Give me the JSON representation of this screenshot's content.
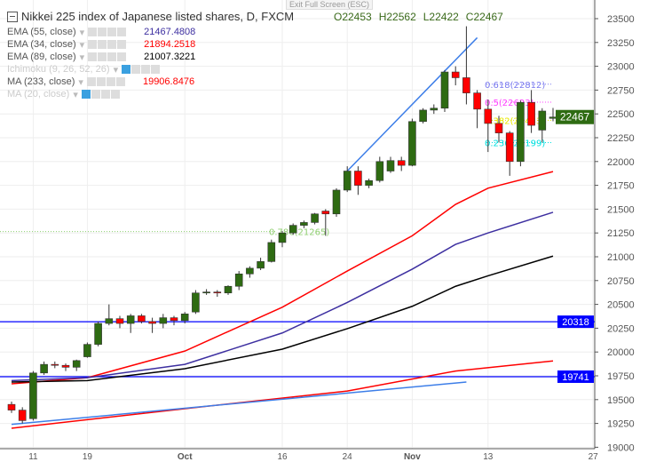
{
  "header": {
    "title": "Nikkei 225 index of Japanese listed shares, D, FXCM",
    "tooltip": "Exit Full Screen (ESC)",
    "ohlc": {
      "open": "O22453",
      "high": "H22562",
      "low": "L22422",
      "close": "C22467"
    }
  },
  "indicators": [
    {
      "name": "EMA (55, close)",
      "value": "21467.4808",
      "color": "#3d2fa0",
      "visible": true
    },
    {
      "name": "EMA (34, close)",
      "value": "21894.2518",
      "color": "#ff0000",
      "visible": true
    },
    {
      "name": "EMA (89, close)",
      "value": "21007.3221",
      "color": "#000000",
      "visible": true
    },
    {
      "name": "Ichimoku (9, 26, 52, 26)",
      "value": "",
      "color": "#cccccc",
      "visible": false
    },
    {
      "name": "MA (233, close)",
      "value": "19906.8476",
      "color": "#ff0000",
      "visible": true
    },
    {
      "name": "MA (20, close)",
      "value": "",
      "color": "#cccccc",
      "visible": false
    }
  ],
  "chart_data": {
    "type": "candlestick",
    "ylim": [
      19000,
      23600
    ],
    "y_ticks": [
      19000,
      19250,
      19500,
      19750,
      20000,
      20250,
      20500,
      20750,
      21000,
      21250,
      21500,
      21750,
      22000,
      22250,
      22500,
      22750,
      23000,
      23250,
      23500
    ],
    "x_ticks": [
      "11",
      "19",
      "Oct",
      "16",
      "24",
      "Nov",
      "13",
      "27"
    ],
    "grid": true,
    "colors": {
      "up": "#2e6b12",
      "down": "#ff0000"
    },
    "candles": [
      [
        "Sep 7",
        19450,
        19480,
        19360,
        19390
      ],
      [
        "Sep 8",
        19390,
        19420,
        19250,
        19280
      ],
      [
        "Sep 11",
        19300,
        19800,
        19280,
        19780
      ],
      [
        "Sep 12",
        19780,
        19900,
        19760,
        19870
      ],
      [
        "Sep 13",
        19870,
        19900,
        19830,
        19860
      ],
      [
        "Sep 14",
        19860,
        19880,
        19800,
        19840
      ],
      [
        "Sep 15",
        19840,
        19920,
        19800,
        19910
      ],
      [
        "Sep 19",
        19950,
        20100,
        19940,
        20080
      ],
      [
        "Sep 20",
        20080,
        20320,
        20060,
        20300
      ],
      [
        "Sep 21",
        20300,
        20500,
        20280,
        20350
      ],
      [
        "Sep 22",
        20350,
        20380,
        20250,
        20300
      ],
      [
        "Sep 25",
        20300,
        20400,
        20200,
        20380
      ],
      [
        "Sep 26",
        20380,
        20400,
        20300,
        20320
      ],
      [
        "Sep 27",
        20320,
        20360,
        20200,
        20300
      ],
      [
        "Sep 28",
        20300,
        20400,
        20250,
        20360
      ],
      [
        "Sep 29",
        20360,
        20380,
        20280,
        20330
      ],
      [
        "Oct 2",
        20330,
        20420,
        20300,
        20400
      ],
      [
        "Oct 3",
        20420,
        20650,
        20400,
        20620
      ],
      [
        "Oct 4",
        20620,
        20660,
        20600,
        20630
      ],
      [
        "Oct 5",
        20630,
        20650,
        20580,
        20620
      ],
      [
        "Oct 6",
        20620,
        20700,
        20600,
        20690
      ],
      [
        "Oct 10",
        20690,
        20850,
        20650,
        20820
      ],
      [
        "Oct 11",
        20820,
        20900,
        20780,
        20880
      ],
      [
        "Oct 12",
        20880,
        20990,
        20860,
        20950
      ],
      [
        "Oct 13",
        20950,
        21180,
        20940,
        21150
      ],
      [
        "Oct 16",
        21150,
        21270,
        21100,
        21250
      ],
      [
        "Oct 17",
        21250,
        21350,
        21230,
        21330
      ],
      [
        "Oct 18",
        21330,
        21380,
        21300,
        21360
      ],
      [
        "Oct 19",
        21360,
        21460,
        21340,
        21450
      ],
      [
        "Oct 20",
        21480,
        21500,
        21220,
        21450
      ],
      [
        "Oct 23",
        21450,
        21720,
        21420,
        21700
      ],
      [
        "Oct 24",
        21700,
        21950,
        21680,
        21900
      ],
      [
        "Oct 25",
        21900,
        21950,
        21650,
        21750
      ],
      [
        "Oct 26",
        21750,
        21820,
        21720,
        21800
      ],
      [
        "Oct 27",
        21800,
        22050,
        21780,
        22000
      ],
      [
        "Oct 30",
        21900,
        22050,
        21880,
        22010
      ],
      [
        "Oct 31",
        22010,
        22050,
        21900,
        21960
      ],
      [
        "Nov 1",
        21960,
        22450,
        21950,
        22420
      ],
      [
        "Nov 2",
        22420,
        22560,
        22400,
        22540
      ],
      [
        "Nov 6",
        22540,
        22600,
        22500,
        22560
      ],
      [
        "Nov 7",
        22560,
        22960,
        22520,
        22940
      ],
      [
        "Nov 8",
        22940,
        23000,
        22800,
        22880
      ],
      [
        "Nov 9",
        22880,
        23420,
        22600,
        22720
      ],
      [
        "Nov 10",
        22720,
        22750,
        22350,
        22550
      ],
      [
        "Nov 13",
        22550,
        22650,
        22100,
        22400
      ],
      [
        "Nov 14",
        22400,
        22480,
        22200,
        22300
      ],
      [
        "Nov 15",
        22300,
        22320,
        21850,
        22000
      ],
      [
        "Nov 16",
        22000,
        22640,
        21950,
        22620
      ],
      [
        "Nov 17",
        22620,
        22750,
        22300,
        22380
      ],
      [
        "Nov 20",
        22330,
        22560,
        22200,
        22530
      ],
      [
        "Nov 21",
        22453,
        22562,
        22422,
        22467
      ]
    ],
    "lines": [
      {
        "name": "EMA (34, close)",
        "color": "#ff0000",
        "points": [
          [
            "Sep 7",
            19666
          ],
          [
            "Sep 19",
            19730
          ],
          [
            "Oct 2",
            20010
          ],
          [
            "Oct 16",
            20470
          ],
          [
            "Oct 24",
            20850
          ],
          [
            "Nov 1",
            21220
          ],
          [
            "Nov 8",
            21550
          ],
          [
            "Nov 13",
            21720
          ],
          [
            "Nov 21",
            21894
          ]
        ]
      },
      {
        "name": "EMA (55, close)",
        "color": "#3d2fa0",
        "points": [
          [
            "Sep 7",
            19700
          ],
          [
            "Sep 19",
            19730
          ],
          [
            "Oct 2",
            19870
          ],
          [
            "Oct 16",
            20200
          ],
          [
            "Oct 24",
            20520
          ],
          [
            "Nov 1",
            20870
          ],
          [
            "Nov 8",
            21130
          ],
          [
            "Nov 13",
            21250
          ],
          [
            "Nov 21",
            21467
          ]
        ]
      },
      {
        "name": "EMA (89, close)",
        "color": "#000000",
        "points": [
          [
            "Sep 7",
            19685
          ],
          [
            "Sep 19",
            19700
          ],
          [
            "Oct 2",
            19825
          ],
          [
            "Oct 16",
            20030
          ],
          [
            "Oct 24",
            20245
          ],
          [
            "Nov 1",
            20480
          ],
          [
            "Nov 8",
            20690
          ],
          [
            "Nov 13",
            20800
          ],
          [
            "Nov 21",
            21007
          ]
        ]
      },
      {
        "name": "MA (233, close)",
        "color": "#ff0000",
        "points": [
          [
            "Sep 7",
            19200
          ],
          [
            "Oct 2",
            19405
          ],
          [
            "Oct 24",
            19590
          ],
          [
            "Nov 8",
            19800
          ],
          [
            "Nov 21",
            19906
          ]
        ]
      }
    ],
    "trendlines": [
      {
        "color": "#3d7ee8",
        "from": [
          "Oct 24",
          21900
        ],
        "to": [
          "Nov 10",
          23300
        ]
      },
      {
        "color": "#3d7ee8",
        "from": [
          "Sep 7",
          19240
        ],
        "to": [
          "Nov 9",
          19685
        ]
      }
    ],
    "horizontal_levels": [
      {
        "value": 20318,
        "label": "20318",
        "color": "#0000ff"
      },
      {
        "value": 19741,
        "label": "19741",
        "color": "#0000ff"
      }
    ],
    "fib_levels": [
      {
        "label": "0.618(22812)",
        "value": 22812,
        "color": "#7b7bef"
      },
      {
        "label": "0.5(22623)",
        "value": 22623,
        "color": "#ff40ff"
      },
      {
        "label": "0.382(22433)",
        "value": 22433,
        "color": "#e8e800"
      },
      {
        "label": "0.236(22199)",
        "value": 22199,
        "color": "#00e0e0"
      },
      {
        "label": "0.786(21265)",
        "value": 21265,
        "color": "#8fcf70"
      }
    ],
    "last_price": {
      "value": 22467,
      "label": "22467",
      "color": "#2e6b12"
    }
  }
}
